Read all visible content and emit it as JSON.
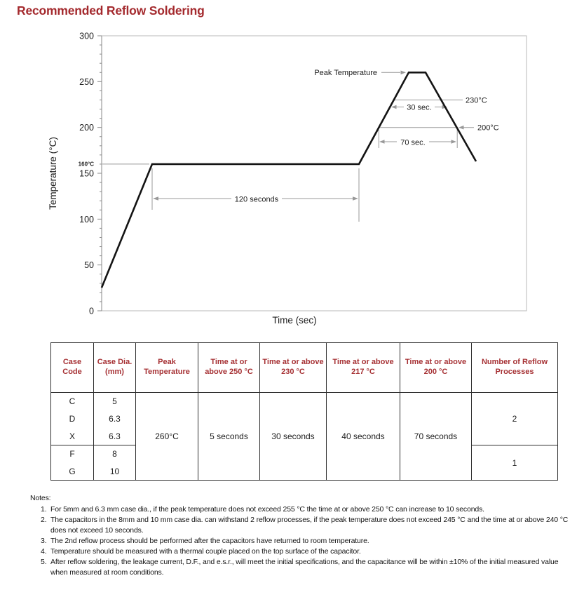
{
  "page": {
    "title": "Recommended Reflow Soldering"
  },
  "colors": {
    "accent_red": "#A42A2E",
    "table_header_red": "#A63134",
    "profile_line": "#141414",
    "dimension_gray": "#999999",
    "plot_border_gray": "#b9b9b9"
  },
  "chart": {
    "ylabel": "Temperature (°C)",
    "xlabel": "Time (sec)",
    "yticks": [
      "300",
      "250",
      "200",
      "150",
      "100",
      "50",
      "0"
    ],
    "labels": {
      "temp160": "160°C",
      "peak": "Peak Temperature",
      "dur30": "30 sec.",
      "temp230": "230°C",
      "dur70": "70 sec.",
      "temp200": "200°C",
      "dur120": "120 seconds"
    }
  },
  "chart_data": {
    "type": "line",
    "title": "Recommended Reflow Soldering",
    "xlabel": "Time (sec)",
    "ylabel": "Temperature (°C)",
    "ylim": [
      0,
      300
    ],
    "yticks_c": [
      0,
      50,
      100,
      150,
      200,
      250,
      300
    ],
    "y_minor_tick_step_c": 10,
    "grid": false,
    "x_axis_numeric_labels": false,
    "profile_segments": [
      {
        "phase": "ramp-up",
        "from_temp_c": 25,
        "to_temp_c": 160
      },
      {
        "phase": "preheat plateau",
        "temp_c": 160,
        "duration_sec": 120
      },
      {
        "phase": "ramp to peak",
        "from_temp_c": 160,
        "to_temp_c": 260
      },
      {
        "phase": "peak plateau",
        "temp_c": 260
      },
      {
        "phase": "cool-down",
        "from_temp_c": 260,
        "to_temp_c": 160
      }
    ],
    "annotations": [
      {
        "text": "Peak Temperature",
        "points_to_temp_c": 260
      },
      {
        "text": "160°C",
        "meaning": "preheat plateau temperature"
      },
      {
        "text": "120 seconds",
        "meaning": "duration of 160°C preheat plateau"
      },
      {
        "text": "30 sec.",
        "meaning": "time at or above 230°C"
      },
      {
        "text": "230°C",
        "meaning": "reference level for 30 sec. span"
      },
      {
        "text": "70 sec.",
        "meaning": "time at or above 200°C"
      },
      {
        "text": "200°C",
        "meaning": "reference level for 70 sec. span"
      }
    ],
    "legend": null
  },
  "table": {
    "headers": [
      "Case Code",
      "Case Dia. (mm)",
      "Peak Temperature",
      "Time at or above 250 °C",
      "Time at or above 230 °C",
      "Time at or above 217 °C",
      "Time at or above 200 °C",
      "Number of Reflow Processes"
    ],
    "rows": [
      {
        "code": "C",
        "dia": "5"
      },
      {
        "code": "D",
        "dia": "6.3"
      },
      {
        "code": "X",
        "dia": "6.3"
      },
      {
        "code": "F",
        "dia": "8"
      },
      {
        "code": "G",
        "dia": "10"
      }
    ],
    "peak_temperature": "260°C",
    "time_above_250": "5 seconds",
    "time_above_230": "30 seconds",
    "time_above_217": "40 seconds",
    "time_above_200": "70 seconds",
    "reflow_processes_cdx": "2",
    "reflow_processes_fg": "1"
  },
  "notes": {
    "heading": "Notes:",
    "items": [
      {
        "num": "1.",
        "text": "For 5mm and 6.3 mm case dia., if the peak temperature does not exceed 255 °C the time at or above 250 °C can increase to 10 seconds."
      },
      {
        "num": "2.",
        "text": "The capacitors in the 8mm and 10 mm case dia. can withstand 2 reflow processes, if the peak temperature does not exceed 245 °C and the time at or above 240 °C does not exceed 10 seconds."
      },
      {
        "num": "3.",
        "text": "The 2nd reflow process should be performed after the capacitors have returned to room temperature."
      },
      {
        "num": "4.",
        "text": "Temperature should be measured with a thermal couple placed on the top surface of the capacitor."
      },
      {
        "num": "5.",
        "text": "After reflow soldering, the leakage current, D.F., and e.s.r., will meet the initial specifications, and the capacitance will be within ±10% of the initial measured value when measured at room conditions."
      }
    ]
  }
}
